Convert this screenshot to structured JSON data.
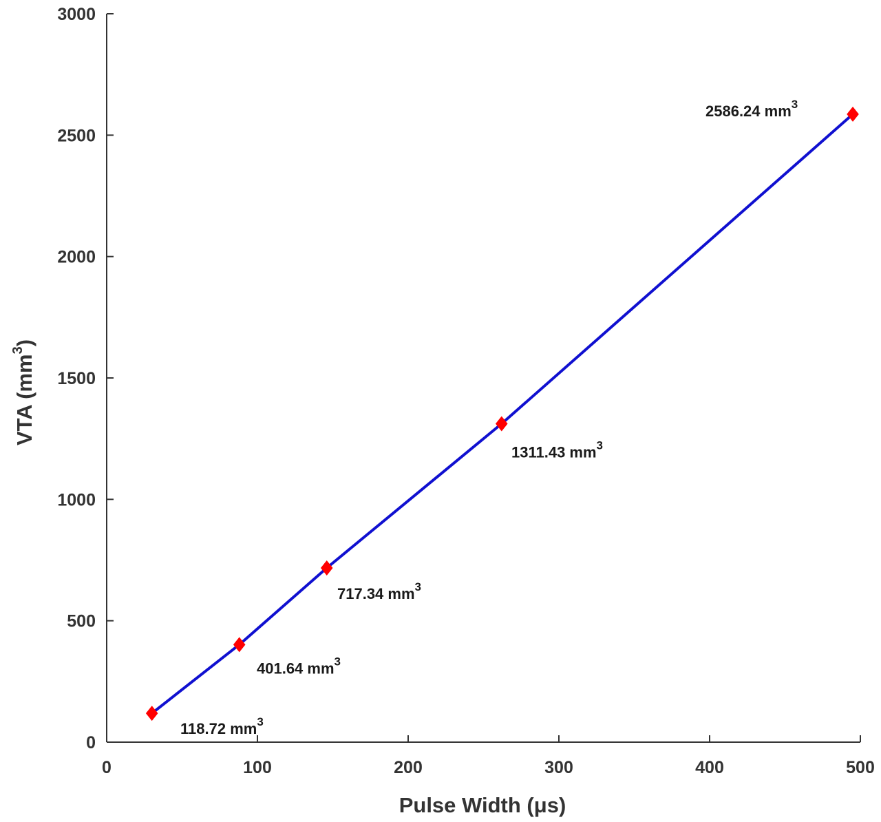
{
  "chart_data": {
    "type": "line",
    "xlabel": "Pulse Width (μs)",
    "ylabel_main": "VTA (mm",
    "ylabel_sup": "3",
    "ylabel_close": ")",
    "xlim": [
      0,
      500
    ],
    "ylim": [
      0,
      3000
    ],
    "xticks": [
      0,
      100,
      200,
      300,
      400,
      500
    ],
    "yticks": [
      0,
      500,
      1000,
      1500,
      2000,
      2500,
      3000
    ],
    "grid": false,
    "line_color": "#1010d0",
    "marker_color": "#ff0000",
    "marker": "diamond",
    "points": [
      {
        "x": 30,
        "y": 118.72,
        "label": "118.72 mm",
        "sup": "3"
      },
      {
        "x": 88,
        "y": 401.64,
        "label": "401.64 mm",
        "sup": "3"
      },
      {
        "x": 146,
        "y": 717.34,
        "label": "717.34 mm",
        "sup": "3"
      },
      {
        "x": 262,
        "y": 1311.43,
        "label": "1311.43 mm",
        "sup": "3"
      },
      {
        "x": 495,
        "y": 2586.24,
        "label": "2586.24 mm",
        "sup": "3"
      }
    ]
  }
}
